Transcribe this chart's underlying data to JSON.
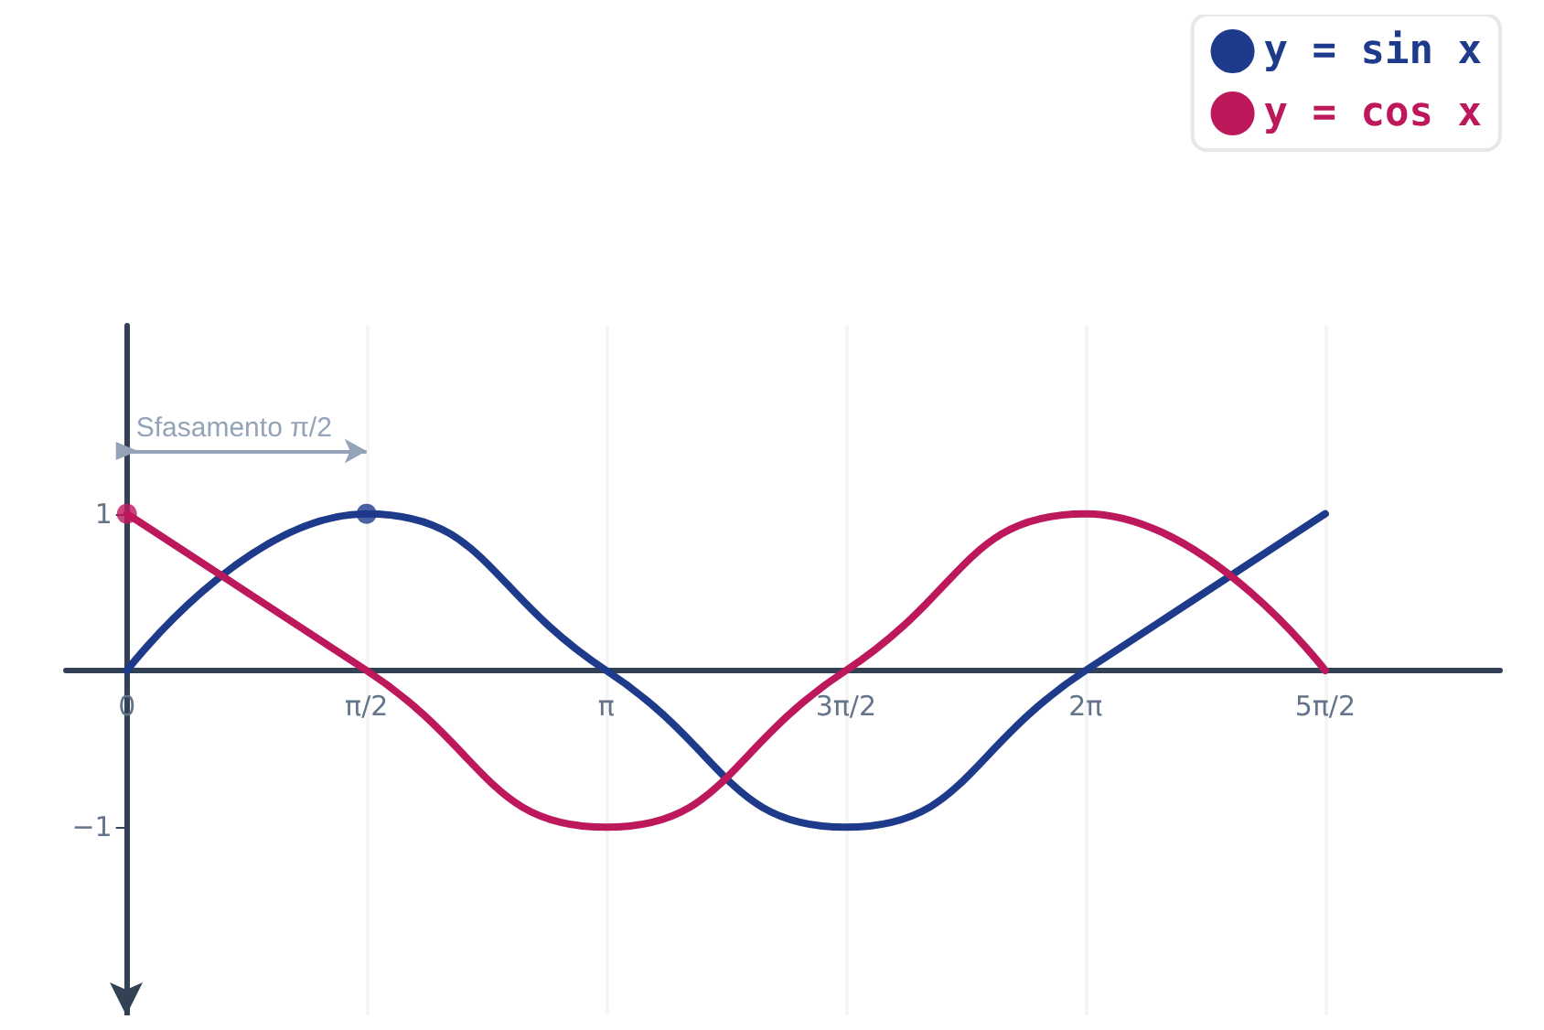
{
  "chart_data": {
    "type": "line",
    "x": [
      0,
      1.5708,
      3.1416,
      4.7124,
      6.2832,
      7.854
    ],
    "series": [
      {
        "name": "y = sin x",
        "color": "#1e3a8a",
        "values": [
          0,
          1,
          0,
          -1,
          0,
          1
        ]
      },
      {
        "name": "y = cos x",
        "color": "#be185d",
        "values": [
          1,
          0,
          -1,
          0,
          1,
          0
        ]
      },
      {
        "type": "scatter",
        "x": [
          0,
          1.5708
        ],
        "values": [
          1,
          1
        ],
        "colors": [
          "#be185d",
          "#1e3a8a"
        ],
        "marker": "circle"
      }
    ],
    "xlim": [
      -0.4,
      9
    ],
    "xticks": [
      {
        "value": 0,
        "label": "0"
      },
      {
        "value": 1.5708,
        "label": "π/2"
      },
      {
        "value": 3.1416,
        "label": "π"
      },
      {
        "value": 4.7124,
        "label": "3π/2"
      },
      {
        "value": 6.2832,
        "label": "2π"
      },
      {
        "value": 7.854,
        "label": "5π/2"
      }
    ],
    "ylim": [
      -2.2,
      2.2
    ],
    "yticks": [
      {
        "value": -1,
        "label": "−1"
      },
      1
    ],
    "annotations": [
      {
        "text": "Sfasamento π/2",
        "x": 0,
        "y": 1.4
      }
    ],
    "grid": "x",
    "legend": "top right",
    "marker": "none",
    "line_style": "solid"
  }
}
